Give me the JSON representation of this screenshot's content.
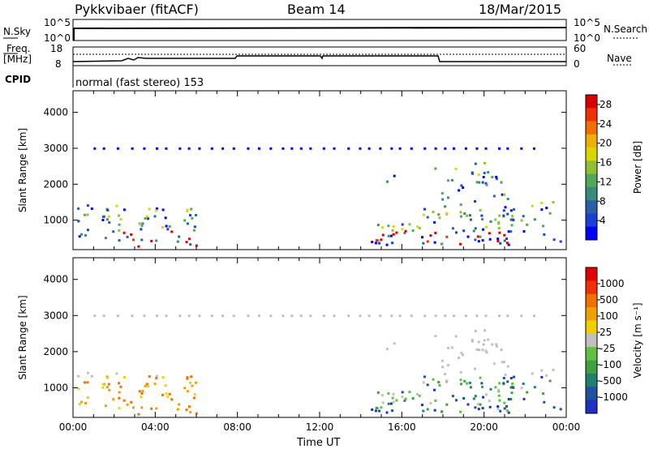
{
  "header": {
    "station": "Pykkvibaer (fitACF)",
    "beam": "Beam 14",
    "date": "18/Mar/2015"
  },
  "status_panels": {
    "nsky_label": "N.Sky",
    "nsky_ticks": [
      "10^5",
      "10^0"
    ],
    "nsearch_label": "N.Search",
    "nsearch_ticks": [
      "10^5",
      "10^0"
    ],
    "freq_label": "Freq.",
    "freq_unit": "[MHz]",
    "freq_ticks": [
      "18",
      "8"
    ],
    "nave_label": "Nave",
    "nave_ticks": [
      "60",
      "0"
    ],
    "cpid_label": "CPID",
    "cpid_text": "normal (fast stereo) 153"
  },
  "chart_data": [
    {
      "type": "heatmap",
      "name": "power",
      "xlabel": "",
      "ylabel": "Slant Range [km]",
      "x_ticks": [
        "00:00",
        "04:00",
        "08:00",
        "12:00",
        "16:00",
        "20:00",
        "00:00"
      ],
      "xlim_hours": [
        0,
        24
      ],
      "y_ticks": [
        1000,
        2000,
        3000,
        4000
      ],
      "ylim": [
        180,
        4600
      ],
      "colorbar": {
        "label": "Power [dB]",
        "ticks": [
          "4",
          "8",
          "12",
          "16",
          "20",
          "24",
          "28"
        ],
        "colors": [
          "#0000ff",
          "#1a40d8",
          "#2860a8",
          "#3a8a7a",
          "#50a85a",
          "#90c030",
          "#d8d800",
          "#f0b000",
          "#f07000",
          "#f03000",
          "#d80000"
        ]
      }
    },
    {
      "type": "heatmap",
      "name": "velocity",
      "xlabel": "Time UT",
      "ylabel": "Slant Range [km]",
      "x_ticks": [
        "00:00",
        "04:00",
        "08:00",
        "12:00",
        "16:00",
        "20:00",
        "00:00"
      ],
      "xlim_hours": [
        0,
        24
      ],
      "y_ticks": [
        1000,
        2000,
        3000,
        4000
      ],
      "ylim": [
        180,
        4600
      ],
      "colorbar": {
        "label": "Velocity [m s⁻¹]",
        "ticks": [
          "1000",
          "500",
          "100",
          "25",
          "-25",
          "-100",
          "-500",
          "-1000"
        ],
        "colors": [
          "#2030c0",
          "#2050a0",
          "#208070",
          "#40a040",
          "#60c040",
          "#c0c0c0",
          "#f0d000",
          "#f0a000",
          "#f07000",
          "#f03000",
          "#e00000"
        ]
      }
    }
  ]
}
